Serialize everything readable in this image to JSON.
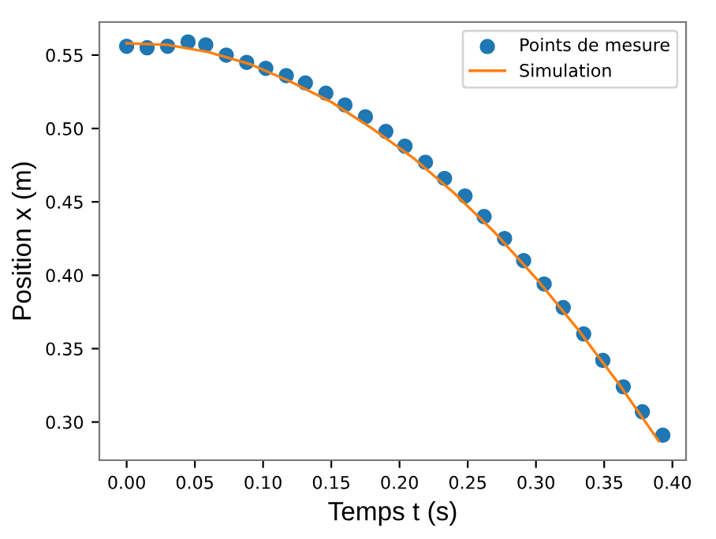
{
  "chart_data": {
    "type": "scatter",
    "xlabel": "Temps t (s)",
    "ylabel": "Position x (m)",
    "xlim": [
      -0.02,
      0.41
    ],
    "ylim": [
      0.274,
      0.5725
    ],
    "xticks": [
      {
        "value": 0,
        "label": "0.00"
      },
      0.05,
      {
        "value": 0.1,
        "label": "0.10"
      },
      0.15,
      {
        "value": 0.2,
        "label": "0.20"
      },
      0.25,
      {
        "value": 0.3,
        "label": "0.30"
      },
      0.35,
      {
        "value": 0.4,
        "label": "0.40"
      }
    ],
    "yticks": [
      {
        "value": 0.3,
        "label": "0.30"
      },
      0.35,
      {
        "value": 0.4,
        "label": "0.40"
      },
      0.45,
      {
        "value": 0.5,
        "label": "0.50"
      },
      0.55
    ],
    "grid": false,
    "legend": "top right",
    "series": [
      {
        "name": "Points de mesure",
        "type": "scatter",
        "marker": "circle",
        "color": "#1f77b4",
        "x": [
          0.0,
          0.015,
          0.03,
          0.045,
          0.058,
          0.073,
          0.088,
          0.102,
          0.117,
          0.131,
          0.146,
          0.16,
          0.175,
          0.19,
          0.204,
          0.219,
          0.233,
          0.248,
          0.262,
          0.277,
          0.291,
          0.306,
          0.32,
          0.335,
          0.349,
          0.364,
          0.378,
          0.393
        ],
        "values": [
          0.556,
          0.555,
          0.556,
          0.559,
          0.557,
          0.55,
          0.545,
          0.541,
          0.536,
          0.531,
          0.524,
          0.516,
          0.508,
          0.498,
          0.488,
          0.477,
          0.466,
          0.454,
          0.44,
          0.425,
          0.41,
          0.394,
          0.378,
          0.36,
          0.342,
          0.324,
          0.307,
          0.291
        ]
      },
      {
        "name": "Simulation",
        "type": "line",
        "marker": "none",
        "line_style": "solid",
        "color": "#ff7f0e",
        "x": [
          0,
          0.03,
          0.06,
          0.09,
          0.12,
          0.15,
          0.18,
          0.21,
          0.24,
          0.27,
          0.3,
          0.33,
          0.36,
          0.39
        ],
        "values": [
          0.558,
          0.557,
          0.552,
          0.544,
          0.532,
          0.518,
          0.5,
          0.48,
          0.456,
          0.429,
          0.398,
          0.364,
          0.327,
          0.287
        ]
      }
    ]
  }
}
